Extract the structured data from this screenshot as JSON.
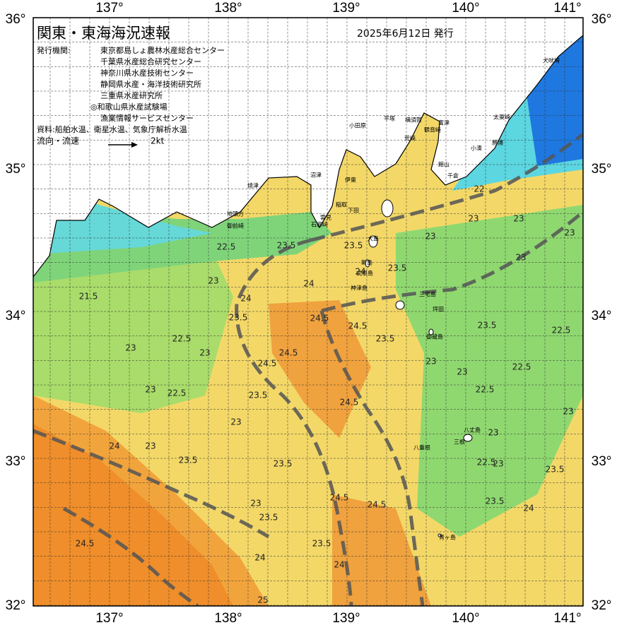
{
  "header": {
    "title": "関東・東海海況速報",
    "date": "2025年6月12日 発行"
  },
  "agencies": {
    "label": "発行機関:",
    "list": [
      "東京都島しょ農林水産総合センター",
      "千葉県水産総合研究センター",
      "神奈川県水産技術センター",
      "静岡県水産・海洋技術研究所",
      "三重県水産研究所",
      "◎和歌山県水産試験場",
      "漁業情報サービスセンター"
    ]
  },
  "source": "資料:船舶水温、衛星水温、気象庁解析水温",
  "legend": {
    "label": "流向・流速",
    "speed": "2kt"
  },
  "axes": {
    "lon": [
      "137°",
      "138°",
      "139°",
      "140°",
      "141°"
    ],
    "lat": [
      "36°",
      "35°",
      "34°",
      "33°",
      "32°"
    ]
  },
  "places": [
    "犬吠埼",
    "太東崎",
    "勝浦",
    "小湊",
    "富津",
    "館山",
    "千倉",
    "横須賀",
    "平塚",
    "観音崎",
    "荒崎",
    "小田原",
    "沼津",
    "伊東",
    "稲取",
    "下田",
    "雲見",
    "石廊崎",
    "焼津",
    "地頭方",
    "御前崎",
    "大島",
    "新島",
    "式根島",
    "神津島",
    "三宅島",
    "坪田",
    "御蔵島",
    "八丈島",
    "三根",
    "八重根",
    "青ヶ島"
  ],
  "contours": [
    "23.5",
    "23.5",
    "24",
    "23.5",
    "24",
    "24",
    "23.5",
    "24.5",
    "24.5",
    "23.5",
    "24.5",
    "24.5",
    "23.5",
    "24.5",
    "23",
    "23",
    "23",
    "23",
    "22.5",
    "21.5",
    "22.5",
    "23",
    "22.5",
    "23",
    "23",
    "23",
    "24",
    "23.5",
    "23.5",
    "23.5",
    "23",
    "24.5",
    "24.5",
    "23.5",
    "24",
    "25",
    "24",
    "24.5",
    "23",
    "22.5",
    "23",
    "23.5",
    "23.5",
    "24",
    "22.5",
    "22.5",
    "23.5",
    "22.5",
    "23",
    "23",
    "23",
    "23",
    "23",
    "22",
    "23"
  ]
}
